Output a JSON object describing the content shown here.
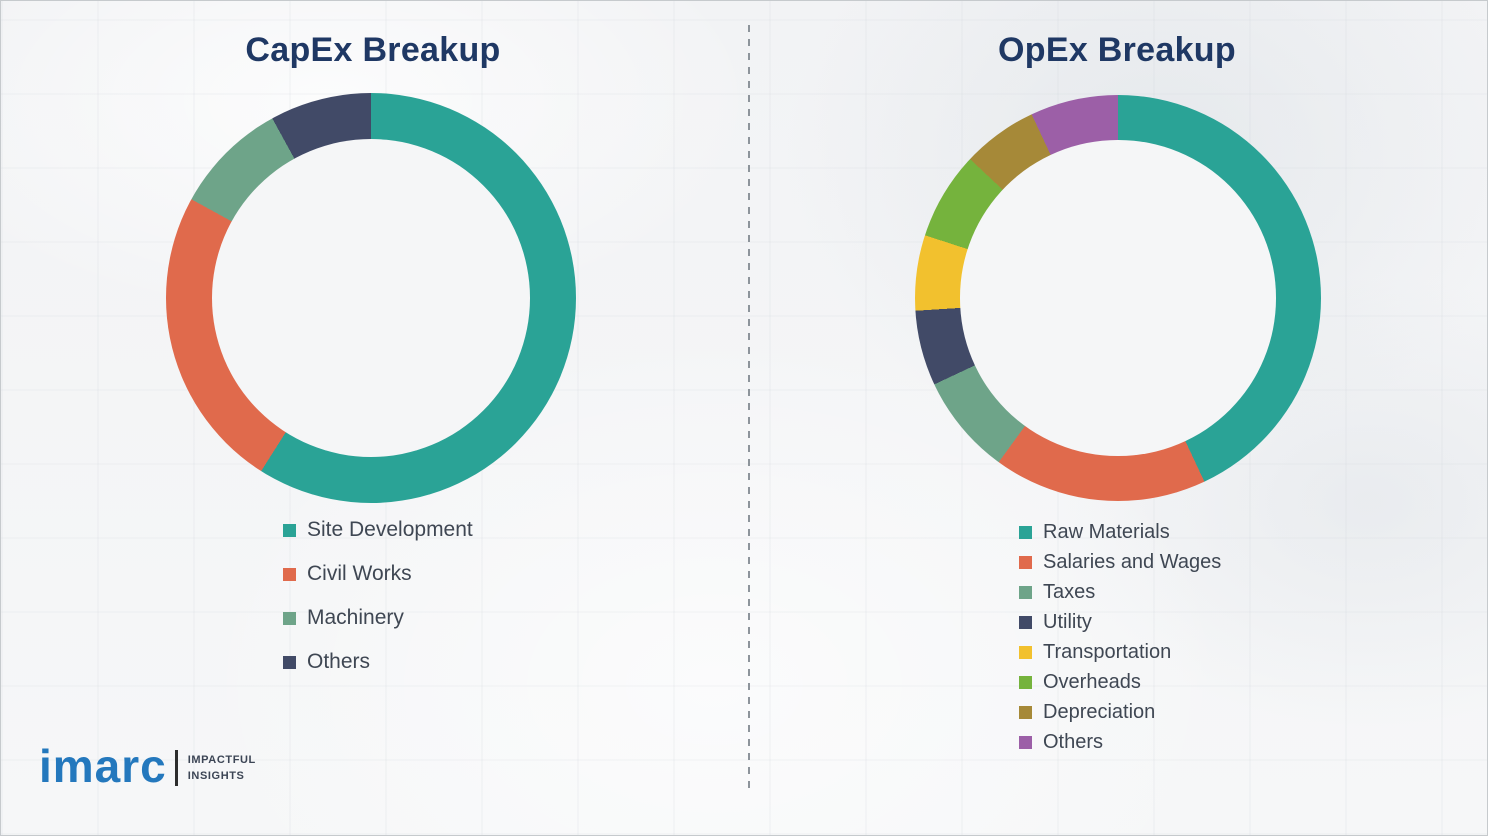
{
  "page": {
    "background_color": "#f4f5f6",
    "divider": "vertical dashed line separating the two charts"
  },
  "titles_color": "#1f3864",
  "chart_data": [
    {
      "type": "pie",
      "donut": true,
      "title": "CapEx Breakup",
      "labels": [
        "Site Development",
        "Civil Works",
        "Machinery",
        "Others"
      ],
      "values": [
        59,
        24,
        9,
        8
      ],
      "values_note": "percent shares estimated from arc angles; no numeric data labels shown",
      "colors": [
        "#2aa396",
        "#e06a4c",
        "#6ea489",
        "#414a67"
      ],
      "start_angle_deg": 0,
      "direction": "clockwise",
      "legend_position": "below chart, left-aligned"
    },
    {
      "type": "pie",
      "donut": true,
      "title": "OpEx Breakup",
      "labels": [
        "Raw Materials",
        "Salaries and Wages",
        "Taxes",
        "Utility",
        "Transportation",
        "Overheads",
        "Depreciation",
        "Others"
      ],
      "values": [
        43,
        17,
        8,
        6,
        6,
        7,
        6,
        7
      ],
      "values_note": "percent shares estimated from arc angles; no numeric data labels shown",
      "colors": [
        "#2aa396",
        "#e06a4c",
        "#6ea489",
        "#414a67",
        "#f2c12e",
        "#75b33d",
        "#a68938",
        "#9c5fa7"
      ],
      "start_angle_deg": 0,
      "direction": "clockwise",
      "legend_position": "below chart, left-aligned"
    }
  ],
  "logo": {
    "brand": "imarc",
    "brand_color": "#2478bd",
    "tagline_line1": "IMPACTFUL",
    "tagline_line2": "INSIGHTS"
  }
}
